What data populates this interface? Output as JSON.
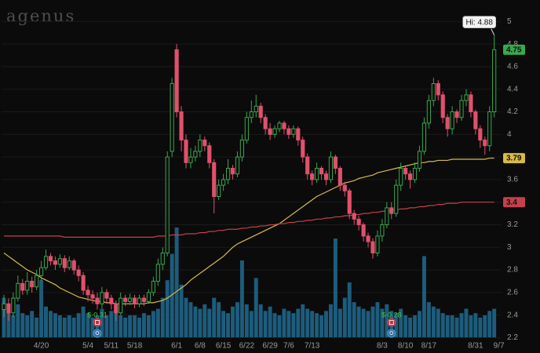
{
  "chart_data": {
    "type": "candlestick",
    "title": "agenus",
    "annotation": "Hi: 4.88",
    "categories": [
      null,
      null,
      null,
      null,
      null,
      null,
      null,
      null,
      "4/20",
      null,
      null,
      null,
      null,
      null,
      null,
      null,
      null,
      null,
      "5/4",
      null,
      null,
      null,
      null,
      "5/11",
      null,
      null,
      null,
      null,
      "5/18",
      null,
      null,
      null,
      null,
      null,
      null,
      null,
      null,
      "6/1",
      null,
      null,
      null,
      null,
      "6/8",
      null,
      null,
      null,
      null,
      "6/15",
      null,
      null,
      null,
      null,
      "6/22",
      null,
      null,
      null,
      null,
      "6/29",
      null,
      null,
      null,
      "7/6",
      null,
      null,
      null,
      null,
      "7/13",
      null,
      null,
      null,
      null,
      null,
      null,
      null,
      null,
      null,
      null,
      null,
      null,
      null,
      null,
      "8/3",
      null,
      null,
      null,
      null,
      "8/10",
      null,
      null,
      null,
      null,
      "8/17",
      null,
      null,
      null,
      null,
      null,
      null,
      null,
      null,
      null,
      "8/31",
      null,
      null,
      null,
      null,
      "9/7"
    ],
    "open": [
      2.45,
      2.5,
      2.42,
      2.55,
      2.68,
      2.62,
      2.7,
      2.65,
      2.75,
      2.82,
      2.92,
      2.88,
      2.85,
      2.9,
      2.82,
      2.88,
      2.8,
      2.75,
      2.62,
      2.58,
      2.55,
      2.5,
      2.6,
      2.55,
      2.5,
      2.42,
      2.55,
      2.52,
      2.55,
      2.5,
      2.55,
      2.52,
      2.6,
      2.7,
      2.85,
      2.95,
      3.85,
      4.75,
      4.2,
      3.95,
      3.75,
      3.8,
      3.85,
      3.95,
      3.9,
      3.75,
      3.45,
      3.55,
      3.6,
      3.7,
      3.65,
      3.8,
      3.95,
      4.15,
      4.2,
      4.25,
      4.15,
      4.05,
      4.0,
      4.05,
      4.1,
      4.05,
      4.0,
      4.05,
      3.95,
      3.8,
      3.65,
      3.6,
      3.7,
      3.65,
      3.6,
      3.8,
      3.7,
      3.55,
      3.5,
      3.3,
      3.25,
      3.2,
      3.1,
      3.05,
      2.95,
      3.1,
      3.2,
      3.35,
      3.3,
      3.55,
      3.7,
      3.65,
      3.6,
      3.7,
      3.85,
      4.1,
      4.3,
      4.45,
      4.35,
      4.15,
      4.05,
      4.2,
      4.15,
      4.3,
      4.35,
      4.2,
      4.05,
      3.95,
      3.9,
      4.2,
      null
    ],
    "high": [
      2.58,
      2.55,
      2.6,
      2.75,
      2.72,
      2.78,
      2.74,
      2.8,
      2.88,
      2.98,
      2.95,
      2.92,
      2.94,
      2.93,
      2.92,
      2.9,
      2.84,
      2.78,
      2.66,
      2.62,
      2.6,
      2.65,
      2.63,
      2.58,
      2.53,
      2.6,
      2.58,
      2.59,
      2.58,
      2.58,
      2.58,
      2.63,
      2.74,
      2.9,
      3.0,
      3.85,
      4.5,
      4.8,
      4.25,
      4.0,
      3.88,
      3.9,
      4.0,
      3.98,
      3.93,
      3.78,
      3.6,
      3.65,
      3.78,
      3.73,
      3.85,
      4.0,
      4.2,
      4.3,
      4.35,
      4.28,
      4.18,
      4.1,
      4.08,
      4.12,
      4.12,
      4.08,
      4.08,
      4.07,
      3.98,
      3.83,
      3.68,
      3.75,
      3.72,
      3.68,
      3.85,
      3.82,
      3.72,
      3.58,
      3.52,
      3.33,
      3.28,
      3.22,
      3.13,
      3.08,
      3.15,
      3.25,
      3.4,
      3.4,
      3.6,
      3.75,
      3.72,
      3.68,
      3.75,
      3.9,
      4.15,
      4.35,
      4.5,
      4.48,
      4.38,
      4.18,
      4.25,
      4.22,
      4.35,
      4.4,
      4.38,
      4.22,
      4.08,
      3.98,
      4.25,
      4.88,
      null
    ],
    "low": [
      2.38,
      2.35,
      2.38,
      2.52,
      2.58,
      2.58,
      2.6,
      2.62,
      2.7,
      2.8,
      2.84,
      2.8,
      2.82,
      2.78,
      2.8,
      2.76,
      2.7,
      2.58,
      2.52,
      2.5,
      2.45,
      2.46,
      2.5,
      2.45,
      2.35,
      2.4,
      2.48,
      2.49,
      2.46,
      2.47,
      2.48,
      2.5,
      2.57,
      2.66,
      2.8,
      2.92,
      3.8,
      4.15,
      3.85,
      3.7,
      3.7,
      3.76,
      3.8,
      3.85,
      3.7,
      3.3,
      3.42,
      3.5,
      3.56,
      3.6,
      3.62,
      3.76,
      3.92,
      4.1,
      4.15,
      4.1,
      4.0,
      3.95,
      3.97,
      4.02,
      4.0,
      3.96,
      3.97,
      3.9,
      3.75,
      3.6,
      3.55,
      3.57,
      3.6,
      3.55,
      3.57,
      3.65,
      3.5,
      3.45,
      3.25,
      3.2,
      3.15,
      3.05,
      3.0,
      2.9,
      2.92,
      3.05,
      3.17,
      3.25,
      3.27,
      3.5,
      3.6,
      3.52,
      3.57,
      3.67,
      3.82,
      4.05,
      4.25,
      4.3,
      4.1,
      3.98,
      4.0,
      4.1,
      4.12,
      4.25,
      4.15,
      4.0,
      3.88,
      3.82,
      3.85,
      4.15,
      null
    ],
    "close": [
      2.5,
      2.42,
      2.55,
      2.68,
      2.62,
      2.7,
      2.65,
      2.75,
      2.82,
      2.92,
      2.88,
      2.85,
      2.9,
      2.82,
      2.88,
      2.8,
      2.75,
      2.62,
      2.58,
      2.55,
      2.5,
      2.6,
      2.55,
      2.5,
      2.42,
      2.55,
      2.52,
      2.55,
      2.5,
      2.55,
      2.52,
      2.6,
      2.7,
      2.85,
      2.95,
      3.8,
      4.45,
      4.2,
      3.95,
      3.75,
      3.8,
      3.85,
      3.95,
      3.9,
      3.75,
      3.45,
      3.55,
      3.6,
      3.7,
      3.65,
      3.8,
      3.95,
      4.15,
      4.2,
      4.25,
      4.15,
      4.05,
      4.0,
      4.05,
      4.1,
      4.05,
      4.0,
      4.05,
      3.95,
      3.8,
      3.65,
      3.6,
      3.7,
      3.65,
      3.6,
      3.8,
      3.7,
      3.55,
      3.5,
      3.3,
      3.25,
      3.2,
      3.1,
      3.05,
      2.95,
      3.1,
      3.2,
      3.35,
      3.3,
      3.55,
      3.7,
      3.65,
      3.6,
      3.7,
      3.85,
      4.1,
      4.3,
      4.45,
      4.35,
      4.15,
      4.05,
      4.2,
      4.15,
      4.3,
      4.35,
      4.2,
      4.05,
      3.95,
      3.9,
      4.2,
      4.75,
      null
    ],
    "up_color": "#37a84f",
    "down_color": "#e0506c",
    "volume": {
      "color": "#1d5c7c",
      "values": [
        1.8,
        1.2,
        1.0,
        1.5,
        1.1,
        1.0,
        1.2,
        0.9,
        2.6,
        1.4,
        1.2,
        1.1,
        1.0,
        0.9,
        1.0,
        0.9,
        1.1,
        1.4,
        1.1,
        0.9,
        1.0,
        1.3,
        1.0,
        1.2,
        1.4,
        1.0,
        0.9,
        1.0,
        1.0,
        0.9,
        1.1,
        1.0,
        1.2,
        1.3,
        1.8,
        2.6,
        3.8,
        5.0,
        2.4,
        1.8,
        1.6,
        1.4,
        1.3,
        1.5,
        1.3,
        1.8,
        1.6,
        1.2,
        1.1,
        1.4,
        1.6,
        3.5,
        1.5,
        1.2,
        2.7,
        1.5,
        1.2,
        1.4,
        1.1,
        1.0,
        1.3,
        1.2,
        1.1,
        1.3,
        1.5,
        1.3,
        1.2,
        1.1,
        1.0,
        1.2,
        1.5,
        4.5,
        1.3,
        1.8,
        2.5,
        1.6,
        1.4,
        1.3,
        1.2,
        1.4,
        1.6,
        1.3,
        1.5,
        1.2,
        1.1,
        1.3,
        1.0,
        0.9,
        1.0,
        1.2,
        3.7,
        1.6,
        1.4,
        1.3,
        1.1,
        1.0,
        1.0,
        0.9,
        1.1,
        1.3,
        1.0,
        1.1,
        0.9,
        1.0,
        1.2,
        1.3,
        null
      ]
    },
    "series": [
      {
        "color": "#d8bb45",
        "values": [
          2.95,
          2.92,
          2.89,
          2.86,
          2.83,
          2.8,
          2.78,
          2.76,
          2.73,
          2.71,
          2.69,
          2.67,
          2.64,
          2.62,
          2.6,
          2.58,
          2.56,
          2.55,
          2.54,
          2.53,
          2.52,
          2.52,
          2.51,
          2.51,
          2.5,
          2.5,
          2.5,
          2.5,
          2.5,
          2.5,
          2.5,
          2.51,
          2.51,
          2.52,
          2.53,
          2.55,
          2.58,
          2.61,
          2.64,
          2.67,
          2.71,
          2.74,
          2.77,
          2.8,
          2.83,
          2.86,
          2.89,
          2.92,
          2.96,
          3.0,
          3.03,
          3.05,
          3.07,
          3.09,
          3.11,
          3.13,
          3.15,
          3.17,
          3.19,
          3.21,
          3.24,
          3.27,
          3.3,
          3.33,
          3.36,
          3.39,
          3.42,
          3.45,
          3.47,
          3.49,
          3.51,
          3.53,
          3.55,
          3.57,
          3.58,
          3.59,
          3.61,
          3.62,
          3.63,
          3.64,
          3.66,
          3.67,
          3.68,
          3.69,
          3.7,
          3.71,
          3.72,
          3.73,
          3.74,
          3.75,
          3.75,
          3.76,
          3.76,
          3.77,
          3.77,
          3.77,
          3.78,
          3.78,
          3.78,
          3.78,
          3.78,
          3.78,
          3.78,
          3.78,
          3.79,
          3.79,
          null
        ]
      },
      {
        "color": "#c4404c",
        "values": [
          3.1,
          3.1,
          3.1,
          3.1,
          3.1,
          3.1,
          3.1,
          3.1,
          3.1,
          3.1,
          3.1,
          3.1,
          3.1,
          3.09,
          3.09,
          3.09,
          3.09,
          3.09,
          3.09,
          3.09,
          3.09,
          3.09,
          3.09,
          3.09,
          3.09,
          3.09,
          3.09,
          3.09,
          3.09,
          3.09,
          3.09,
          3.09,
          3.09,
          3.1,
          3.1,
          3.1,
          3.11,
          3.11,
          3.11,
          3.12,
          3.12,
          3.12,
          3.13,
          3.13,
          3.14,
          3.14,
          3.15,
          3.15,
          3.16,
          3.16,
          3.16,
          3.17,
          3.17,
          3.18,
          3.18,
          3.19,
          3.19,
          3.2,
          3.2,
          3.21,
          3.21,
          3.22,
          3.22,
          3.23,
          3.23,
          3.24,
          3.24,
          3.25,
          3.25,
          3.26,
          3.26,
          3.27,
          3.27,
          3.28,
          3.28,
          3.29,
          3.29,
          3.3,
          3.3,
          3.31,
          3.31,
          3.32,
          3.32,
          3.33,
          3.33,
          3.34,
          3.34,
          3.35,
          3.35,
          3.36,
          3.36,
          3.37,
          3.37,
          3.38,
          3.38,
          3.39,
          3.39,
          3.39,
          3.4,
          3.4,
          3.4,
          3.4,
          3.4,
          3.4,
          3.4,
          3.4,
          null
        ]
      }
    ],
    "eps": {
      "color": "#3fbf4f",
      "values": [
        null,
        null,
        null,
        null,
        null,
        null,
        null,
        null,
        null,
        null,
        null,
        null,
        null,
        null,
        null,
        null,
        null,
        null,
        null,
        null,
        -0.31,
        null,
        null,
        null,
        null,
        null,
        null,
        null,
        null,
        null,
        null,
        null,
        null,
        null,
        null,
        null,
        null,
        null,
        null,
        null,
        null,
        null,
        null,
        null,
        null,
        null,
        null,
        null,
        null,
        null,
        null,
        null,
        null,
        null,
        null,
        null,
        null,
        null,
        null,
        null,
        null,
        null,
        null,
        null,
        null,
        null,
        null,
        null,
        null,
        null,
        null,
        null,
        null,
        null,
        null,
        null,
        null,
        null,
        null,
        null,
        null,
        null,
        null,
        -0.28,
        null,
        null,
        null,
        null,
        null,
        null,
        null,
        null,
        null,
        null,
        null,
        null,
        null,
        null,
        null,
        null,
        null,
        null,
        null,
        null,
        null,
        null,
        null
      ],
      "value_labels": [
        null,
        null,
        null,
        null,
        null,
        null,
        null,
        null,
        null,
        null,
        null,
        null,
        null,
        null,
        null,
        null,
        null,
        null,
        null,
        null,
        "$-0.31",
        null,
        null,
        null,
        null,
        null,
        null,
        null,
        null,
        null,
        null,
        null,
        null,
        null,
        null,
        null,
        null,
        null,
        null,
        null,
        null,
        null,
        null,
        null,
        null,
        null,
        null,
        null,
        null,
        null,
        null,
        null,
        null,
        null,
        null,
        null,
        null,
        null,
        null,
        null,
        null,
        null,
        null,
        null,
        null,
        null,
        null,
        null,
        null,
        null,
        null,
        null,
        null,
        null,
        null,
        null,
        null,
        null,
        null,
        null,
        null,
        null,
        null,
        "$-0.28",
        null,
        null,
        null,
        null,
        null,
        null,
        null,
        null,
        null,
        null,
        null,
        null,
        null,
        null,
        null,
        null,
        null,
        null,
        null,
        null,
        null,
        null,
        null
      ]
    },
    "ylim": [
      2.12,
      5.19
    ],
    "yticks": [
      2.2,
      2.4,
      2.6,
      2.8,
      3,
      3.2,
      3.4,
      3.6,
      3.8,
      4,
      4.2,
      4.4,
      4.6,
      4.8,
      5
    ],
    "grid": true
  }
}
